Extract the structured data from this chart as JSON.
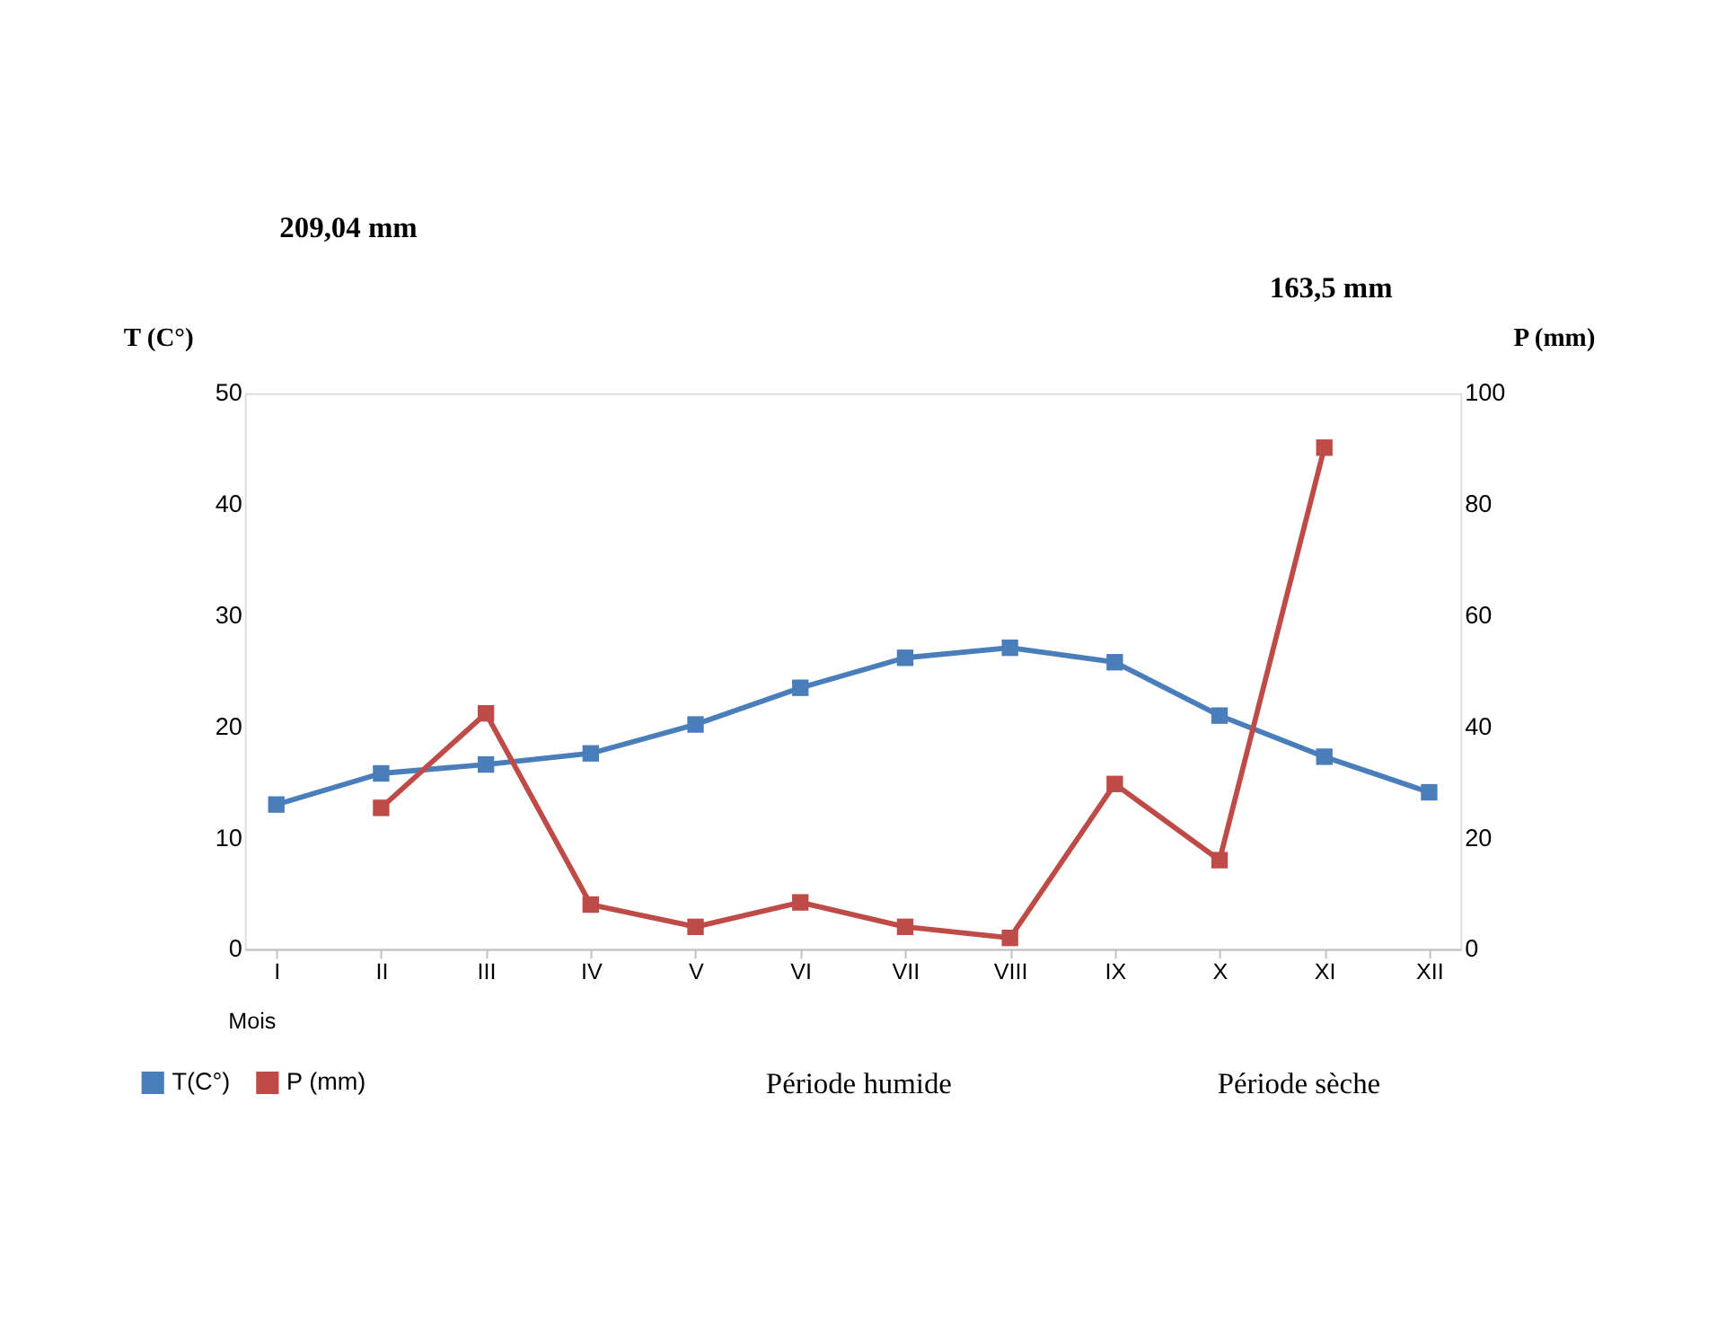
{
  "chart_data": {
    "type": "line",
    "categories": [
      "I",
      "II",
      "III",
      "IV",
      "V",
      "VI",
      "VII",
      "VIII",
      "IX",
      "X",
      "XI",
      "XII"
    ],
    "series": [
      {
        "name": "T(C°)",
        "color": "#4a7ebb",
        "values": [
          13,
          15.8,
          16.6,
          17.6,
          20.2,
          23.5,
          26.2,
          27.1,
          25.8,
          21,
          17.3,
          14.1
        ]
      },
      {
        "name": "P (mm)",
        "color": "#be4b48",
        "axis": "y2",
        "values": [
          null,
          25.4,
          42.4,
          8,
          4,
          8.4,
          4,
          2,
          29.7,
          16,
          90.2,
          null
        ]
      }
    ],
    "xlabel": "Mois",
    "ylabel": "T (C°)",
    "y2label": "P (mm)",
    "ylim": [
      0,
      50
    ],
    "yticks": [
      0,
      10,
      20,
      30,
      40,
      50
    ],
    "y2lim": [
      0,
      100
    ],
    "y2ticks": [
      0,
      20,
      40,
      60,
      80,
      100
    ],
    "annotations": [
      "209,04 mm",
      "163,5 mm",
      "Période humide",
      "Période sèche"
    ],
    "marker": "square",
    "grid": false,
    "legend": "bottom"
  }
}
